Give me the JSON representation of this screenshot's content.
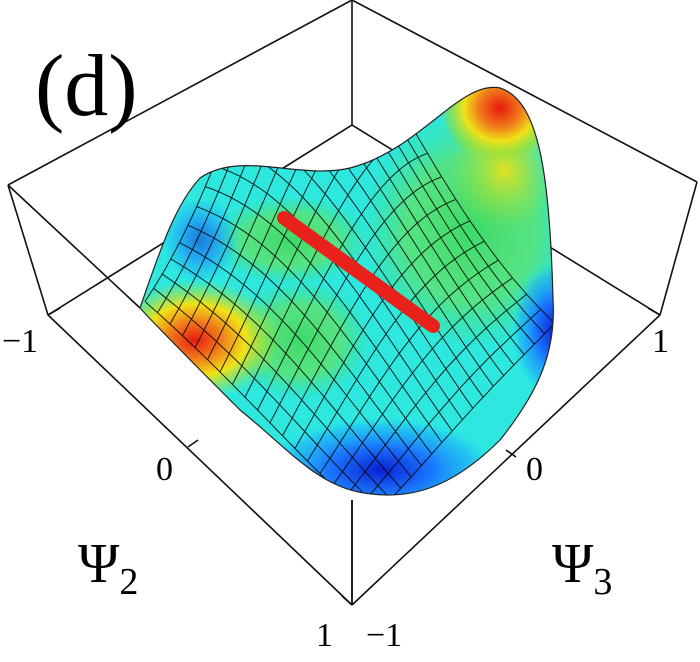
{
  "panel_label": "(d)",
  "chart_data": {
    "type": "surface",
    "x_axis": {
      "label": "Ψ",
      "subscript": "2",
      "ticks": [
        "−1",
        "0",
        "1"
      ],
      "range": [
        -1,
        1
      ]
    },
    "y_axis": {
      "label": "Ψ",
      "subscript": "3",
      "ticks": [
        "−1",
        "0",
        "1"
      ],
      "range": [
        -1,
        1
      ]
    },
    "z_axis": {
      "label": "",
      "ticks": []
    },
    "surface": {
      "grid_lines": 18,
      "colormap": [
        "#0a1fd6",
        "#1aa6ff",
        "#22f0f0",
        "#3ad96a",
        "#9ee02c",
        "#f0e218",
        "#f07a1a",
        "#e81a10"
      ],
      "features": [
        {
          "kind": "peak",
          "psi2": 1,
          "psi3": -1,
          "color": "red"
        },
        {
          "kind": "peak",
          "psi2": -1,
          "psi3": 1,
          "color": "red"
        },
        {
          "kind": "valley",
          "psi2": 1,
          "psi3": 1,
          "color": "blue"
        },
        {
          "kind": "valley",
          "psi2": -1,
          "psi3": -1,
          "color": "blue"
        }
      ]
    },
    "highlight_line": {
      "color": "#e8211a",
      "description": ""
    },
    "grid": false
  }
}
